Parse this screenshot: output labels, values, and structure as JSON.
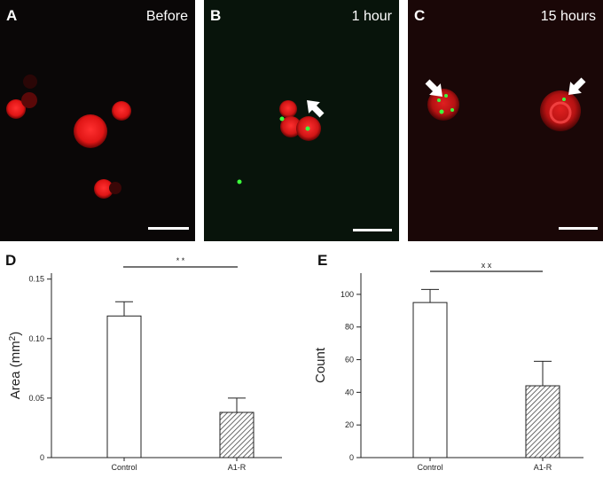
{
  "figure": {
    "panels": [
      {
        "letter": "A",
        "time": "Before",
        "bg": "#0a0707"
      },
      {
        "letter": "B",
        "time": "1 hour",
        "bg": "#08140b"
      },
      {
        "letter": "C",
        "time": "15 hours",
        "bg": "#1a0707"
      }
    ],
    "colors": {
      "cell": "#e01a1a",
      "particle": "#3cff3c",
      "arrow": "#ffffff"
    }
  },
  "chart_data": [
    {
      "panel": "D",
      "type": "bar",
      "categories": [
        "Control",
        "A1-R"
      ],
      "values": [
        0.119,
        0.038
      ],
      "errors": [
        0.012,
        0.012
      ],
      "ylabel": "Area (mm²)",
      "ylabel_main": "Area (mm",
      "ylabel_sup": "2",
      "ylabel_end": ")",
      "ylim": [
        0,
        0.155
      ],
      "yticks": [
        "0",
        "0.05",
        "0.10",
        "0.15"
      ],
      "ytick_values": [
        0,
        0.05,
        0.1,
        0.15
      ],
      "significance": "* *",
      "bar_styles": [
        "open",
        "hatched"
      ]
    },
    {
      "panel": "E",
      "type": "bar",
      "categories": [
        "Control",
        "A1-R"
      ],
      "values": [
        95,
        44
      ],
      "errors": [
        8,
        15
      ],
      "ylabel": "Count",
      "ylim": [
        0,
        113
      ],
      "yticks": [
        "0",
        "20",
        "40",
        "60",
        "80",
        "100"
      ],
      "ytick_values": [
        0,
        20,
        40,
        60,
        80,
        100
      ],
      "significance": "x x",
      "bar_styles": [
        "open",
        "hatched"
      ]
    }
  ]
}
